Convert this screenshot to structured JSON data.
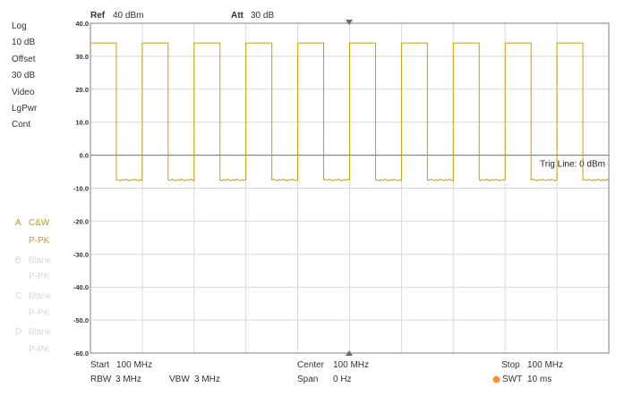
{
  "header": {
    "ref_label": "Ref",
    "ref_value": "40 dBm",
    "att_label": "Att",
    "att_value": "30 dB"
  },
  "sidebar": {
    "items": [
      "Log",
      "10 dB",
      "Offset",
      "30 dB",
      "Video",
      "LgPwr",
      "Cont"
    ]
  },
  "traces": [
    {
      "letter": "A",
      "name": "C&W",
      "detector": "P-PK",
      "state": "active"
    },
    {
      "letter": "B",
      "name": "Blank",
      "detector": "P-PK",
      "state": "blank"
    },
    {
      "letter": "C",
      "name": "Blank",
      "detector": "P-PK",
      "state": "blank"
    },
    {
      "letter": "D",
      "name": "Blank",
      "detector": "P-PK",
      "state": "blank"
    }
  ],
  "footer": {
    "start_label": "Start",
    "start_value": "100 MHz",
    "center_label": "Center",
    "center_value": "100 MHz",
    "stop_label": "Stop",
    "stop_value": "100 MHz",
    "rbw_label": "RBW",
    "rbw_value": "3 MHz",
    "vbw_label": "VBW",
    "vbw_value": "3 MHz",
    "span_label": "Span",
    "span_value": "0 Hz",
    "swt_label": "SWT",
    "swt_value": "10 ms"
  },
  "colors": {
    "trace": "#c8a000",
    "trig_line": "#4a7fb5",
    "grid": "#d9d9d9",
    "frame": "#808080",
    "marker": "#6b6b6b",
    "swt_dot": "#ff8c2a"
  },
  "chart_data": {
    "type": "line",
    "ylim": [
      -60,
      40
    ],
    "yticks": [
      "40.0",
      "30.0",
      "20.0",
      "10.0",
      "0.0",
      "-10.0",
      "-20.0",
      "-30.0",
      "-40.0",
      "-50.0",
      "-60.0"
    ],
    "x_unit": "ms",
    "xlim": [
      0,
      10
    ],
    "series": [
      {
        "name": "A",
        "high_level": 34,
        "low_level": -7.5,
        "high_intervals": [
          [
            0.0,
            0.5
          ],
          [
            1.0,
            1.5
          ],
          [
            2.0,
            2.5
          ],
          [
            3.0,
            3.5
          ],
          [
            4.0,
            4.5
          ],
          [
            5.0,
            5.5
          ],
          [
            6.0,
            6.5
          ],
          [
            7.0,
            7.5
          ],
          [
            8.0,
            8.5
          ],
          [
            9.0,
            9.5
          ]
        ]
      }
    ],
    "trig_line": {
      "value": 0,
      "label": "Trig Line: 0 dBm"
    },
    "gridlines": true
  }
}
